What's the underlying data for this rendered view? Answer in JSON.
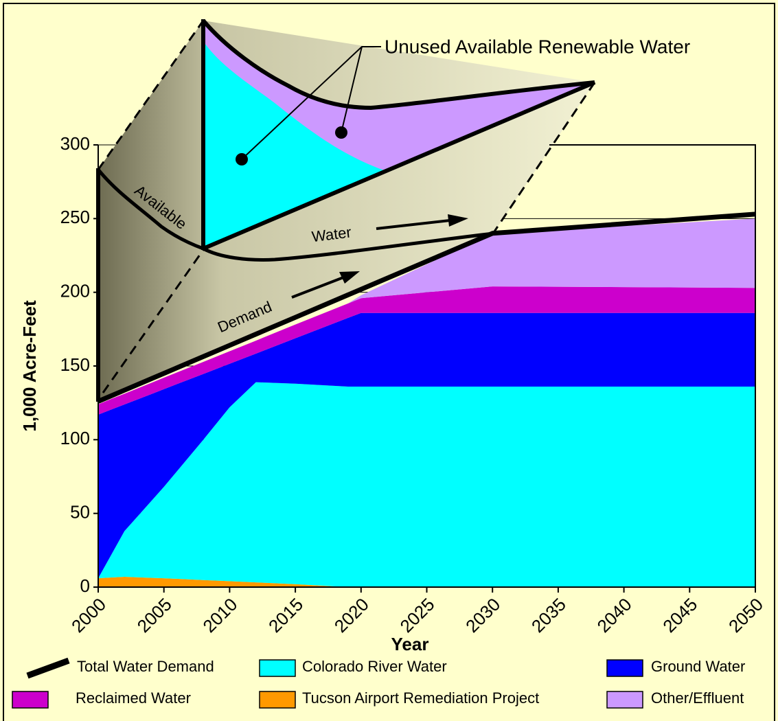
{
  "chart_data": {
    "type": "area",
    "x_label": "Year",
    "y_label": "1,000 Acre-Feet",
    "x": [
      2000,
      2001,
      2002,
      2004,
      2005,
      2008,
      2010,
      2012,
      2015,
      2019,
      2020,
      2030,
      2050
    ],
    "xlim": [
      2000,
      2050
    ],
    "xticks": [
      2000,
      2005,
      2010,
      2015,
      2020,
      2025,
      2030,
      2035,
      2040,
      2045,
      2050
    ],
    "ylim": [
      0,
      300
    ],
    "yticks": [
      0,
      50,
      100,
      150,
      200,
      250,
      300
    ],
    "grid": true,
    "background": "#FFFFCC",
    "series": [
      {
        "name": "Tucson Airport Remediation Project",
        "color": "#FF9900",
        "values": [
          6,
          6.5,
          7,
          6.3,
          6,
          4.8,
          4,
          3.2,
          2,
          0,
          0,
          0,
          0
        ]
      },
      {
        "name": "Colorado River Water",
        "color": "#00FFFF",
        "values": [
          0,
          15.5,
          31,
          51.7,
          62,
          95.2,
          118,
          135.8,
          136,
          136,
          136,
          136,
          136
        ]
      },
      {
        "name": "Ground Water",
        "color": "#0000FF",
        "values": [
          111,
          98.5,
          85.9,
          72.8,
          66.3,
          44.6,
          29.5,
          19.4,
          30.8,
          46.6,
          50,
          50,
          50
        ]
      },
      {
        "name": "Reclaimed Water",
        "color": "#CC00CC",
        "values": [
          7,
          7.2,
          7.3,
          7.6,
          7.8,
          8.2,
          8.5,
          8.8,
          9.3,
          9.8,
          10,
          18,
          17
        ]
      },
      {
        "name": "Other/Effluent",
        "color": "#CC99FF",
        "values": [
          0,
          0,
          0,
          0,
          0,
          0,
          0,
          0,
          0,
          0,
          2,
          36,
          47
        ]
      },
      {
        "name": "Total Water Demand",
        "color": "#000000",
        "type": "line",
        "values": [
          126,
          129.8,
          133.6,
          141.2,
          145,
          156.4,
          164,
          171.6,
          183,
          198.2,
          202,
          240,
          253
        ]
      }
    ],
    "annotations": {
      "callout": "Unused Available Renewable Water",
      "available": "Available",
      "water": "Water",
      "demand": "Demand"
    }
  }
}
